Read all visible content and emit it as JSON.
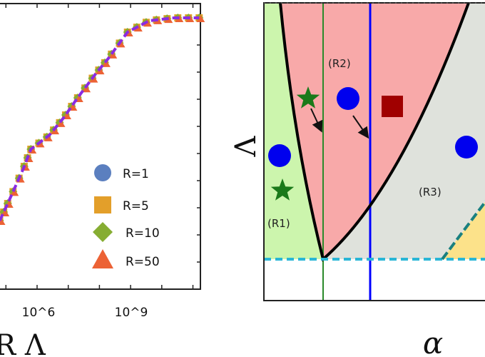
{
  "chart_data": [
    {
      "type": "scatter",
      "xlabel": "R Λ",
      "xscale": "log",
      "yscale": "log",
      "x_ticks": [
        "10^6",
        "10^9"
      ],
      "legend_placement": "bottom-right",
      "legend": [
        {
          "label": "R=1",
          "marker": "circle",
          "color": "#5b7fbf"
        },
        {
          "label": "R=5",
          "marker": "square",
          "color": "#e39f2a"
        },
        {
          "label": "R=10",
          "marker": "diamond",
          "color": "#86ad32"
        },
        {
          "label": "R=50",
          "marker": "triangle",
          "color": "#ec6235"
        }
      ],
      "fit_line_color": "#8a2be2",
      "curve_x_log10": [
        4.8,
        5.1,
        5.55,
        5.8,
        6.4,
        6.85,
        7.3,
        7.85,
        8.3,
        8.9,
        9.6,
        10.4,
        11.2
      ],
      "curve_y_fraction_of_axis": [
        0.24,
        0.31,
        0.42,
        0.49,
        0.54,
        0.6,
        0.67,
        0.75,
        0.81,
        0.9,
        0.94,
        0.95,
        0.95
      ]
    },
    {
      "type": "diagram",
      "xlabel": "α",
      "ylabel": "Λ",
      "regions": [
        {
          "label": "(R1)",
          "color": "#ccf5ad"
        },
        {
          "label": "(R2)",
          "color": "#f8a9a9"
        },
        {
          "label": "(R3)",
          "color": "#dfe2dc"
        },
        {
          "label": "",
          "color": "#fce28a"
        }
      ],
      "markers": [
        {
          "shape": "star",
          "color": "#1a7a1a",
          "region": "(R2)"
        },
        {
          "shape": "circle",
          "color": "#0000ee",
          "region": "(R2)"
        },
        {
          "shape": "square",
          "color": "#a00000",
          "region": "(R2)"
        },
        {
          "shape": "circle",
          "color": "#0000ee",
          "region": "(R1)"
        },
        {
          "shape": "star",
          "color": "#1a7a1a",
          "region": "(R1)"
        },
        {
          "shape": "circle",
          "color": "#0000ee",
          "region": "(R3)"
        }
      ],
      "line_colors": {
        "green_vertical": "#2a8a2a",
        "blue_vertical": "#0000ff",
        "cyan_dashed": "#29b6d6",
        "teal_dashed": "#1a8080"
      }
    }
  ]
}
